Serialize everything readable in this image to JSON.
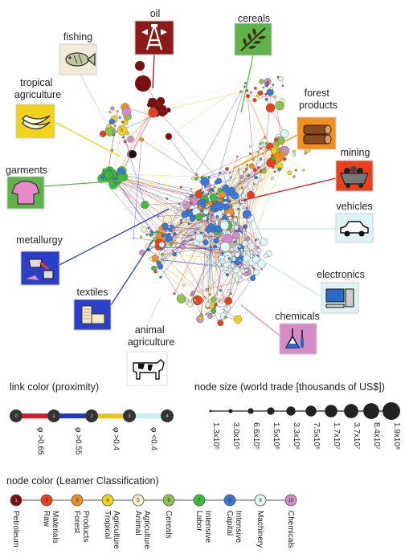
{
  "categories": [
    {
      "key": "oil",
      "label_lines": [
        "oil"
      ],
      "icon": "oil-derrick-icon",
      "color": "#8b1a1a"
    },
    {
      "key": "cereals",
      "label_lines": [
        "cereals"
      ],
      "icon": "wheat-icon",
      "color": "#5fb34a"
    },
    {
      "key": "fishing",
      "label_lines": [
        "fishing"
      ],
      "icon": "fish-icon",
      "color": "#f2ead8"
    },
    {
      "key": "tropical",
      "label_lines": [
        "tropical",
        "agriculture"
      ],
      "icon": "banana-icon",
      "color": "#f2d21b"
    },
    {
      "key": "forest",
      "label_lines": [
        "forest",
        "products"
      ],
      "icon": "logs-icon",
      "color": "#f0901e"
    },
    {
      "key": "garments",
      "label_lines": [
        "garments"
      ],
      "icon": "shirt-icon",
      "color": "#5fb34a"
    },
    {
      "key": "mining",
      "label_lines": [
        "mining"
      ],
      "icon": "mine-cart-icon",
      "color": "#e8401c"
    },
    {
      "key": "vehicles",
      "label_lines": [
        "vehicles"
      ],
      "icon": "car-icon",
      "color": "#dff4f4"
    },
    {
      "key": "metallurgy",
      "label_lines": [
        "metallurgy"
      ],
      "icon": "furnace-icon",
      "color": "#2a40c8"
    },
    {
      "key": "electronics",
      "label_lines": [
        "electronics"
      ],
      "icon": "computer-icon",
      "color": "#dff4f4"
    },
    {
      "key": "textiles",
      "label_lines": [
        "textiles"
      ],
      "icon": "fabric-icon",
      "color": "#2a40c8"
    },
    {
      "key": "chemicals",
      "label_lines": [
        "chemicals"
      ],
      "icon": "flask-icon",
      "color": "#d48cc4"
    },
    {
      "key": "animal",
      "label_lines": [
        "animal",
        "agriculture"
      ],
      "icon": "cow-icon",
      "color": "#fff"
    }
  ],
  "link_legend": {
    "title": "link color (proximity)",
    "nodes": [
      "0",
      "1",
      "2",
      "3",
      "4"
    ],
    "segments": [
      {
        "label": "φ >0.65",
        "color": "#d4202c"
      },
      {
        "label": "φ >0.55",
        "color": "#2438c8"
      },
      {
        "label": "φ >0.4",
        "color": "#f0c21e"
      },
      {
        "label": "φ <0.4",
        "color": "#c8eef0"
      }
    ]
  },
  "size_legend": {
    "title": "node size (world trade [thousands of US$])",
    "ticks": [
      "1.3x10⁵",
      "3.0x10⁵",
      "6.6x10⁵",
      "1.5x10⁶",
      "3.3x10⁶",
      "7.5x10⁶",
      "1.7x10⁷",
      "3.7x10⁷",
      "8.4x10⁷",
      "1.9x10⁸"
    ]
  },
  "color_legend": {
    "title": "node color (Leamer Classification)",
    "classes": [
      {
        "num": "1",
        "name": "Petroleum",
        "color": "#7a0f0f"
      },
      {
        "num": "2",
        "name": "Raw Materials",
        "color": "#e8401c"
      },
      {
        "num": "3",
        "name": "Forest Products",
        "color": "#f0901e"
      },
      {
        "num": "4",
        "name": "Tropical Agriculture",
        "color": "#f2d21b"
      },
      {
        "num": "5",
        "name": "Animal Agriculture",
        "color": "#f6f0c8"
      },
      {
        "num": "6",
        "name": "Cereals",
        "color": "#8bc34a"
      },
      {
        "num": "7",
        "name": "Labor Intensive",
        "color": "#3bbf3b"
      },
      {
        "num": "8",
        "name": "Capital Intensive",
        "color": "#3a78d8"
      },
      {
        "num": "9",
        "name": "Machinery",
        "color": "#dff4f4"
      },
      {
        "num": "10",
        "name": "Chemicals",
        "color": "#d48cc4"
      }
    ]
  }
}
